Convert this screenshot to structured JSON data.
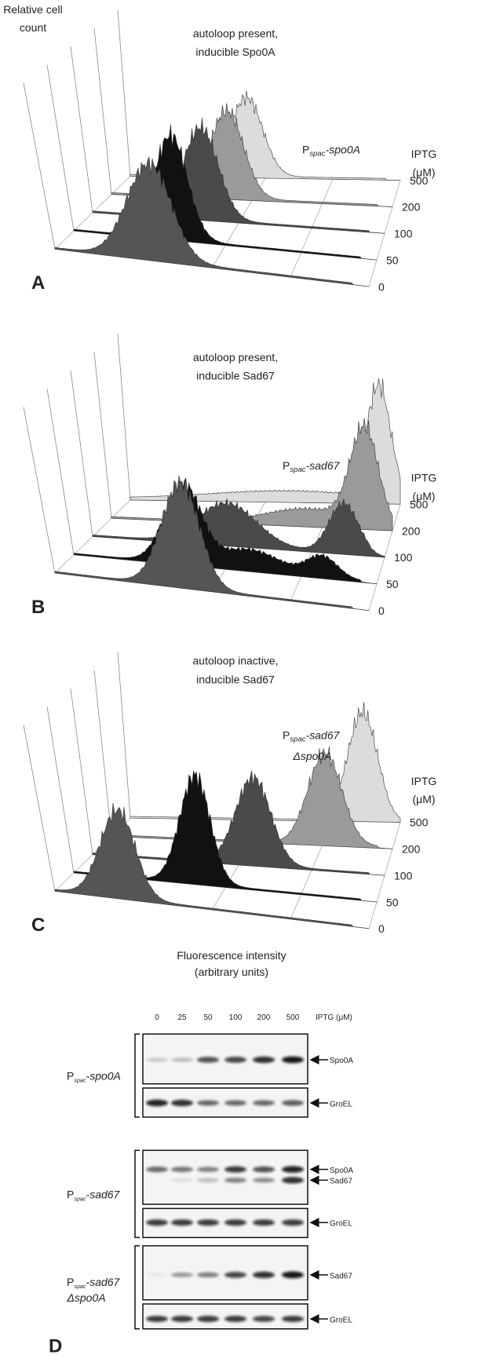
{
  "panels": [
    {
      "label": "A",
      "y_axis_label": [
        "Relative cell",
        "count"
      ],
      "title": [
        "autoloop present,",
        "inducible Spo0A"
      ],
      "construct": {
        "prefix": "P",
        "subscript": "spac",
        "gene": "-spo0A"
      },
      "iptg_label": [
        "IPTG",
        "(μM)"
      ],
      "iptg_levels": [
        "500",
        "200",
        "100",
        "50",
        "0"
      ]
    },
    {
      "label": "B",
      "title": [
        "autoloop present,",
        "inducible Sad67"
      ],
      "construct": {
        "prefix": "P",
        "subscript": "spac",
        "gene": "-sad67"
      },
      "iptg_label": [
        "IPTG",
        "(μM)"
      ],
      "iptg_levels": [
        "500",
        "200",
        "100",
        "50",
        "0"
      ]
    },
    {
      "label": "C",
      "title": [
        "autoloop inactive,",
        "inducible Sad67"
      ],
      "construct": {
        "prefix": "P",
        "subscript": "spac",
        "gene": "-sad67",
        "gene_line2": "Δspo0A"
      },
      "iptg_label": [
        "IPTG",
        "(μM)"
      ],
      "iptg_levels": [
        "500",
        "200",
        "100",
        "50",
        "0"
      ],
      "x_axis_label": [
        "Fluorescence intensity",
        "(arbitrary units)"
      ]
    }
  ],
  "western": {
    "label": "D",
    "lanes": [
      "0",
      "25",
      "50",
      "100",
      "200",
      "500"
    ],
    "lanes_unit": "IPTG (μM)",
    "groups": [
      {
        "construct": {
          "prefix": "P",
          "subscript": "spac",
          "gene": "-spo0A"
        },
        "blots": [
          {
            "bands": [
              "Spo0A"
            ]
          },
          {
            "bands": [
              "GroEL"
            ]
          }
        ]
      },
      {
        "construct": {
          "prefix": "P",
          "subscript": "spac",
          "gene": "-sad67"
        },
        "blots": [
          {
            "bands": [
              "Spo0A",
              "Sad67"
            ]
          },
          {
            "bands": [
              "GroEL"
            ]
          }
        ]
      },
      {
        "construct": {
          "prefix": "P",
          "subscript": "spac",
          "gene": "-sad67",
          "gene_line2": "Δspo0A"
        },
        "blots": [
          {
            "bands": [
              "Sad67"
            ]
          },
          {
            "bands": [
              "GroEL"
            ]
          }
        ]
      }
    ]
  }
}
